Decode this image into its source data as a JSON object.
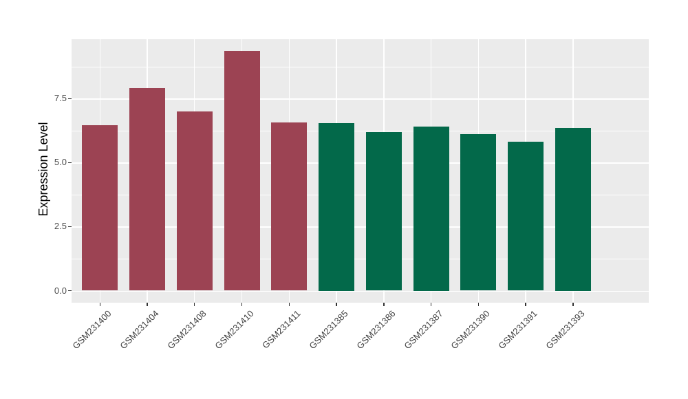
{
  "chart_data": {
    "type": "bar",
    "title": "",
    "xlabel": "",
    "ylabel": "Expression Level",
    "categories": [
      "GSM231400",
      "GSM231404",
      "GSM231408",
      "GSM231410",
      "GSM231411",
      "GSM231385",
      "GSM231386",
      "GSM231387",
      "GSM231390",
      "GSM231391",
      "GSM231393"
    ],
    "values": [
      6.46,
      7.9,
      7.01,
      9.35,
      6.57,
      6.53,
      6.18,
      6.41,
      6.11,
      5.82,
      6.36
    ],
    "groups": [
      0,
      0,
      0,
      0,
      0,
      1,
      1,
      1,
      1,
      1,
      1
    ],
    "group_colors": [
      "#9C4353",
      "#03694A"
    ],
    "ytick_values": [
      0,
      2.5,
      5,
      7.5
    ],
    "ytick_labels": [
      "0.0",
      "2.5",
      "5.0",
      "7.5"
    ],
    "minor_ytick_values": [
      1.25,
      3.75,
      6.25,
      8.75
    ],
    "ylim": [
      -0.47,
      9.82
    ],
    "grid": true,
    "legend": false,
    "colors": {
      "panel_background": "#EBEBEB",
      "gridline": "#FFFFFF",
      "tick_mark": "#333333",
      "axis_text": "#4D4D4D",
      "axis_title": "#000000",
      "figure_background": "#FFFFFF"
    }
  }
}
